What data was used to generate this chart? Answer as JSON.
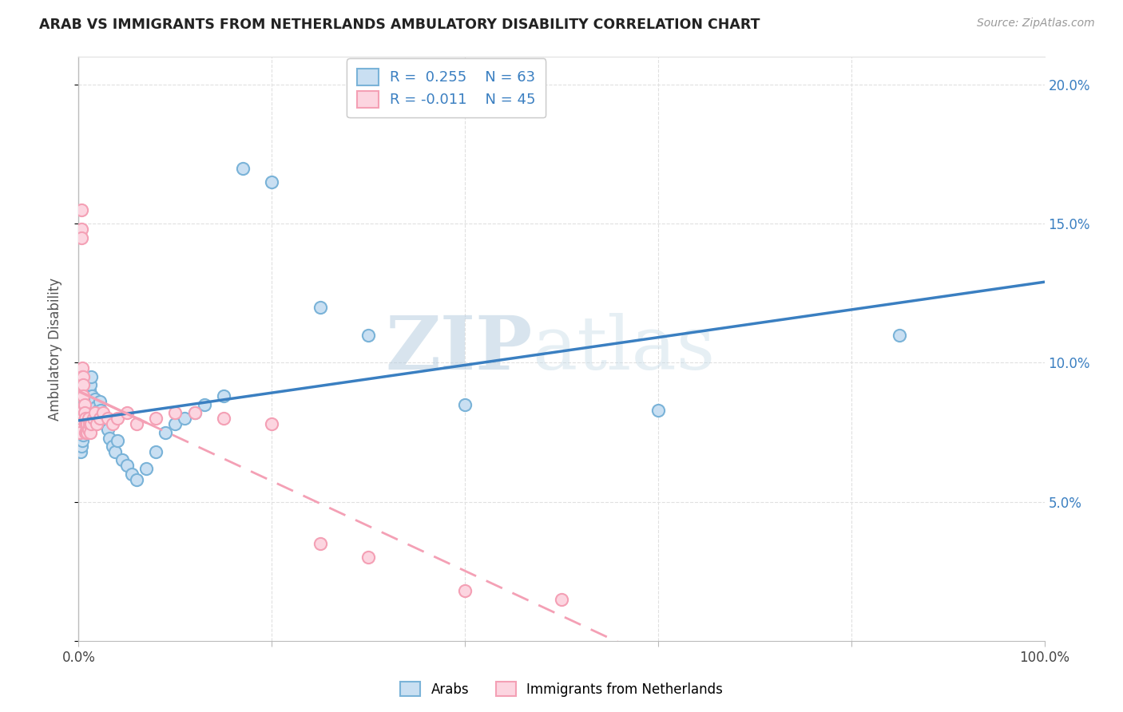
{
  "title": "ARAB VS IMMIGRANTS FROM NETHERLANDS AMBULATORY DISABILITY CORRELATION CHART",
  "source": "Source: ZipAtlas.com",
  "ylabel": "Ambulatory Disability",
  "xlim": [
    0,
    1.0
  ],
  "ylim": [
    0,
    0.21
  ],
  "legend_labels": [
    "Arabs",
    "Immigrants from Netherlands"
  ],
  "blue_edge": "#7ab3d8",
  "blue_face": "#c9dff2",
  "pink_edge": "#f4a0b5",
  "pink_face": "#fcd5e0",
  "blue_line": "#3a7fc1",
  "pink_line": "#f4a0b5",
  "R1": 0.255,
  "N1": 63,
  "R2": -0.011,
  "N2": 45,
  "watermark_zip": "ZIP",
  "watermark_atlas": "atlas",
  "arab_x": [
    0.001,
    0.001,
    0.002,
    0.002,
    0.002,
    0.003,
    0.003,
    0.003,
    0.004,
    0.004,
    0.004,
    0.005,
    0.005,
    0.005,
    0.006,
    0.006,
    0.006,
    0.007,
    0.007,
    0.008,
    0.008,
    0.009,
    0.009,
    0.01,
    0.01,
    0.011,
    0.012,
    0.013,
    0.014,
    0.015,
    0.016,
    0.017,
    0.018,
    0.019,
    0.02,
    0.022,
    0.023,
    0.025,
    0.027,
    0.03,
    0.032,
    0.035,
    0.038,
    0.04,
    0.045,
    0.05,
    0.055,
    0.06,
    0.07,
    0.08,
    0.09,
    0.1,
    0.11,
    0.12,
    0.13,
    0.15,
    0.17,
    0.2,
    0.25,
    0.3,
    0.4,
    0.6,
    0.85
  ],
  "arab_y": [
    0.077,
    0.073,
    0.075,
    0.072,
    0.068,
    0.078,
    0.074,
    0.07,
    0.08,
    0.076,
    0.072,
    0.082,
    0.078,
    0.074,
    0.085,
    0.081,
    0.077,
    0.083,
    0.079,
    0.086,
    0.082,
    0.08,
    0.076,
    0.088,
    0.084,
    0.09,
    0.092,
    0.095,
    0.088,
    0.085,
    0.082,
    0.087,
    0.084,
    0.081,
    0.083,
    0.086,
    0.083,
    0.08,
    0.078,
    0.076,
    0.073,
    0.07,
    0.068,
    0.072,
    0.065,
    0.063,
    0.06,
    0.058,
    0.062,
    0.068,
    0.075,
    0.078,
    0.08,
    0.082,
    0.085,
    0.088,
    0.17,
    0.165,
    0.12,
    0.11,
    0.085,
    0.083,
    0.11
  ],
  "netherlands_x": [
    0.001,
    0.001,
    0.002,
    0.002,
    0.003,
    0.003,
    0.003,
    0.004,
    0.004,
    0.005,
    0.005,
    0.005,
    0.006,
    0.006,
    0.007,
    0.007,
    0.007,
    0.008,
    0.008,
    0.009,
    0.009,
    0.01,
    0.01,
    0.011,
    0.012,
    0.013,
    0.015,
    0.017,
    0.019,
    0.022,
    0.025,
    0.03,
    0.035,
    0.04,
    0.05,
    0.06,
    0.08,
    0.1,
    0.12,
    0.15,
    0.2,
    0.25,
    0.3,
    0.4,
    0.5
  ],
  "netherlands_y": [
    0.078,
    0.075,
    0.08,
    0.082,
    0.155,
    0.148,
    0.145,
    0.098,
    0.095,
    0.095,
    0.092,
    0.088,
    0.085,
    0.082,
    0.08,
    0.078,
    0.075,
    0.078,
    0.075,
    0.078,
    0.075,
    0.08,
    0.076,
    0.078,
    0.075,
    0.078,
    0.08,
    0.082,
    0.078,
    0.08,
    0.082,
    0.08,
    0.078,
    0.08,
    0.082,
    0.078,
    0.08,
    0.082,
    0.082,
    0.08,
    0.078,
    0.035,
    0.03,
    0.018,
    0.015
  ]
}
